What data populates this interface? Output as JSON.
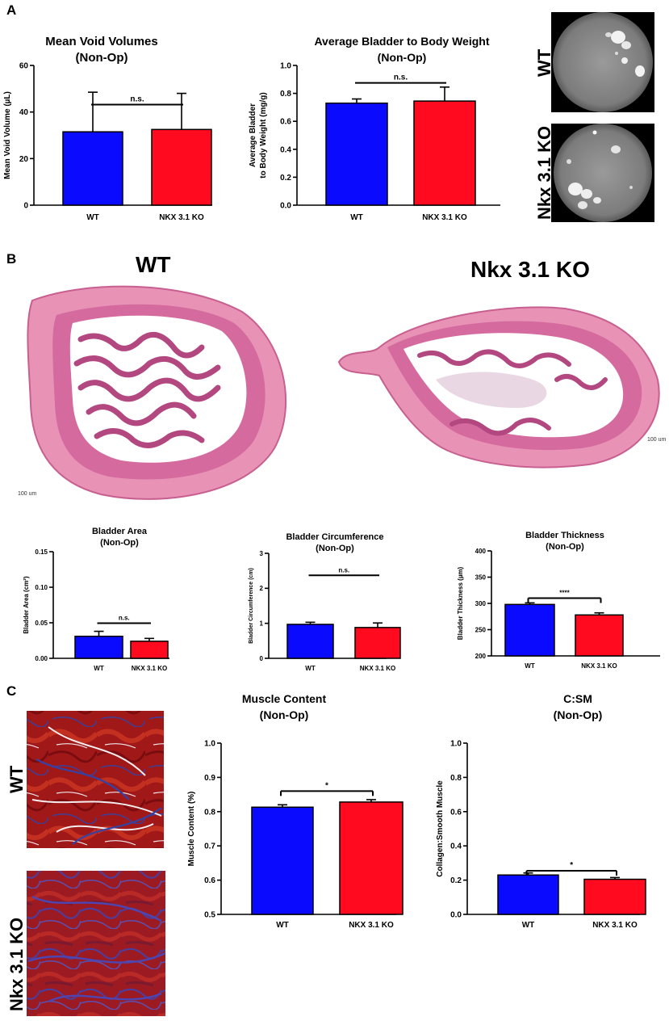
{
  "panels": {
    "a": "A",
    "b": "B",
    "c": "C"
  },
  "microscopy": {
    "vsa_wt_label": "WT",
    "vsa_ko_label": "Nkx 3.1 KO",
    "he_wt_label": "WT",
    "he_ko_label": "Nkx 3.1 KO",
    "he_scale_wt": "100 um",
    "he_scale_ko": "100 um",
    "tri_wt_label": "WT",
    "tri_ko_label": "Nkx 3.1 KO"
  },
  "colors": {
    "wt": "#0a0aff",
    "ko": "#ff0a1e"
  },
  "chart_data": [
    {
      "id": "void",
      "type": "bar",
      "title": "Mean Void Volumes",
      "subtitle": "(Non-Op)",
      "ylabel": "Mean Void Volume (µL)",
      "categories": [
        "WT",
        "NKX 3.1 KO"
      ],
      "values": [
        31.5,
        32.5
      ],
      "errors": [
        17,
        15.5
      ],
      "ylim": [
        0,
        60
      ],
      "ticks": [
        "0",
        "20",
        "40",
        "60"
      ],
      "significance": "n.s."
    },
    {
      "id": "bbw",
      "type": "bar",
      "title": "Average Bladder to Body Weight",
      "subtitle": "(Non-Op)",
      "ylabel": "Average Bladder to Body Weight (mg/g)",
      "categories": [
        "WT",
        "NKX 3.1 KO"
      ],
      "values": [
        0.73,
        0.745
      ],
      "errors": [
        0.03,
        0.1
      ],
      "ylim": [
        0,
        1.0
      ],
      "ticks": [
        "0.0",
        "0.2",
        "0.4",
        "0.6",
        "0.8",
        "1.0"
      ],
      "significance": "n.s."
    },
    {
      "id": "area",
      "type": "bar",
      "title": "Bladder Area",
      "subtitle": "(Non-Op)",
      "ylabel": "Bladder Area (cm²)",
      "categories": [
        "WT",
        "NKX 3.1 KO"
      ],
      "values": [
        0.031,
        0.024
      ],
      "errors": [
        0.007,
        0.004
      ],
      "ylim": [
        0,
        0.15
      ],
      "ticks": [
        "0.00",
        "0.05",
        "0.10",
        "0.15"
      ],
      "significance": "n.s."
    },
    {
      "id": "circ",
      "type": "bar",
      "title": "Bladder Circumference",
      "subtitle": "(Non-Op)",
      "ylabel": "Bladder Circumference (cm)",
      "categories": [
        "WT",
        "NKX 3.1 KO"
      ],
      "values": [
        0.97,
        0.88
      ],
      "errors": [
        0.06,
        0.13
      ],
      "ylim": [
        0,
        3
      ],
      "ticks": [
        "0",
        "1",
        "2",
        "3"
      ],
      "significance": "n.s."
    },
    {
      "id": "thick",
      "type": "bar",
      "title": "Bladder Thickness",
      "subtitle": "(Non-Op)",
      "ylabel": "Bladder Thickness (µm)",
      "categories": [
        "WT",
        "NKX 3.1 KO"
      ],
      "values": [
        298,
        278
      ],
      "errors": [
        3,
        4
      ],
      "ylim": [
        200,
        400
      ],
      "ticks": [
        "200",
        "250",
        "300",
        "350",
        "400"
      ],
      "significance": "****"
    },
    {
      "id": "muscle",
      "type": "bar",
      "title": "Muscle Content",
      "subtitle": "(Non-Op)",
      "ylabel": "Muscle Content (%)",
      "categories": [
        "WT",
        "NKX 3.1 KO"
      ],
      "values": [
        0.813,
        0.828
      ],
      "errors": [
        0.007,
        0.007
      ],
      "ylim": [
        0.5,
        1.0
      ],
      "ticks": [
        "0.5",
        "0.6",
        "0.7",
        "0.8",
        "0.9",
        "1.0"
      ],
      "significance": "*"
    },
    {
      "id": "csm",
      "type": "bar",
      "title": "C:SM",
      "subtitle": "(Non-Op)",
      "ylabel": "Collagen:Smooth Muscle",
      "categories": [
        "WT",
        "NKX 3.1 KO"
      ],
      "values": [
        0.23,
        0.205
      ],
      "errors": [
        0.012,
        0.01
      ],
      "ylim": [
        0,
        1.0
      ],
      "ticks": [
        "0.0",
        "0.2",
        "0.4",
        "0.6",
        "0.8",
        "1.0"
      ],
      "significance": "*"
    }
  ]
}
